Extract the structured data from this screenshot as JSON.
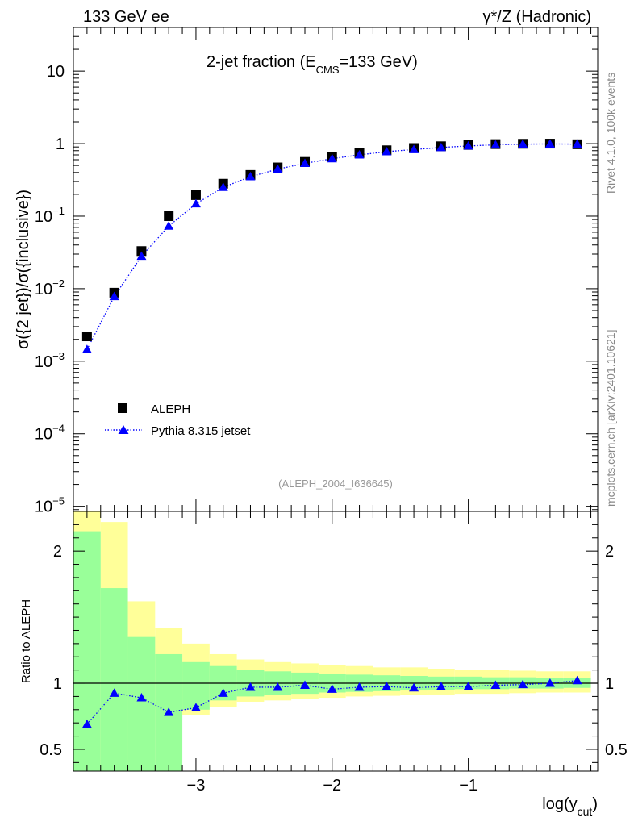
{
  "header": {
    "left": "133 GeV ee",
    "right": "γ*/Z (Hadronic)"
  },
  "side_labels": {
    "rivet": "Rivet 4.1.0,  100k events",
    "mcplots": "mcplots.cern.ch [arXiv:2401.10621]"
  },
  "title": {
    "main": "2-jet fraction (E",
    "sub": "CMS",
    "tail": "=133 GeV)"
  },
  "analysis_id": "(ALEPH_2004_I636645)",
  "colors": {
    "data": "#000000",
    "mc": "#0000ff",
    "band_inner": "#99ff99",
    "band_outer": "#ffff99"
  },
  "chart_data": [
    {
      "type": "scatter",
      "panel": "main",
      "yscale": "log",
      "ylabel": "σ({2 jet})/σ({inclusive})",
      "xlim": [
        -3.9,
        -0.05
      ],
      "ylim": [
        8.5e-06,
        40
      ],
      "y_ticks": [
        {
          "value": 10,
          "base": "10",
          "exp": ""
        },
        {
          "value": 1,
          "base": "1",
          "exp": ""
        },
        {
          "value": 0.1,
          "base": "10",
          "exp": "−1"
        },
        {
          "value": 0.01,
          "base": "10",
          "exp": "−2"
        },
        {
          "value": 0.001,
          "base": "10",
          "exp": "−3"
        },
        {
          "value": 0.0001,
          "base": "10",
          "exp": "−4"
        },
        {
          "value": 1e-05,
          "base": "10",
          "exp": "−5"
        }
      ],
      "legend": [
        {
          "label": "ALEPH",
          "marker": "square"
        },
        {
          "label": "Pythia 8.315 jetset",
          "marker": "triangle"
        }
      ],
      "x": [
        -3.8,
        -3.6,
        -3.4,
        -3.2,
        -3.0,
        -2.8,
        -2.6,
        -2.4,
        -2.2,
        -2.0,
        -1.8,
        -1.6,
        -1.4,
        -1.2,
        -1.0,
        -0.8,
        -0.6,
        -0.4,
        -0.2
      ],
      "series": [
        {
          "name": "ALEPH",
          "values": [
            0.0022,
            0.0088,
            0.033,
            0.1,
            0.195,
            0.28,
            0.37,
            0.47,
            0.56,
            0.66,
            0.74,
            0.81,
            0.87,
            0.92,
            0.96,
            0.985,
            0.995,
            1.0,
            0.98
          ]
        },
        {
          "name": "Pythia 8.315 jetset",
          "values": [
            0.00145,
            0.0078,
            0.028,
            0.073,
            0.148,
            0.25,
            0.35,
            0.445,
            0.535,
            0.62,
            0.7,
            0.775,
            0.83,
            0.885,
            0.93,
            0.962,
            0.985,
            0.99,
            0.985
          ]
        }
      ]
    },
    {
      "type": "line",
      "panel": "ratio",
      "ylabel": "Ratio to ALEPH",
      "xlabel": "log(y",
      "xlabel_sub": "cut",
      "xlabel_tail": ")",
      "xlim": [
        -3.9,
        -0.05
      ],
      "ylim": [
        0.335,
        2.3
      ],
      "y_ticks": [
        {
          "value": 2,
          "label": "2"
        },
        {
          "value": 1,
          "label": "1"
        },
        {
          "value": 0.5,
          "label": "0.5"
        }
      ],
      "x_ticks": [
        {
          "value": -3,
          "label": "−3"
        },
        {
          "value": -2,
          "label": "−2"
        },
        {
          "value": -1,
          "label": "−1"
        }
      ],
      "bin_edges": [
        -3.9,
        -3.7,
        -3.5,
        -3.3,
        -3.1,
        -2.9,
        -2.7,
        -2.5,
        -2.3,
        -2.1,
        -1.9,
        -1.7,
        -1.5,
        -1.3,
        -1.1,
        -0.9,
        -0.7,
        -0.5,
        -0.3,
        -0.1
      ],
      "band_inner": [
        [
          0.335,
          2.15
        ],
        [
          0.335,
          1.72
        ],
        [
          0.335,
          1.35
        ],
        [
          0.335,
          1.22
        ],
        [
          0.8,
          1.16
        ],
        [
          0.87,
          1.13
        ],
        [
          0.9,
          1.1
        ],
        [
          0.91,
          1.09
        ],
        [
          0.92,
          1.08
        ],
        [
          0.93,
          1.07
        ],
        [
          0.935,
          1.065
        ],
        [
          0.94,
          1.06
        ],
        [
          0.945,
          1.055
        ],
        [
          0.95,
          1.05
        ],
        [
          0.955,
          1.05
        ],
        [
          0.955,
          1.045
        ],
        [
          0.96,
          1.045
        ],
        [
          0.96,
          1.04
        ],
        [
          0.965,
          1.04
        ]
      ],
      "band_outer": [
        [
          0.335,
          2.3
        ],
        [
          0.335,
          2.22
        ],
        [
          0.4,
          1.62
        ],
        [
          0.72,
          1.42
        ],
        [
          0.76,
          1.3
        ],
        [
          0.82,
          1.22
        ],
        [
          0.86,
          1.18
        ],
        [
          0.87,
          1.16
        ],
        [
          0.88,
          1.15
        ],
        [
          0.89,
          1.14
        ],
        [
          0.9,
          1.13
        ],
        [
          0.905,
          1.12
        ],
        [
          0.91,
          1.12
        ],
        [
          0.915,
          1.11
        ],
        [
          0.92,
          1.1
        ],
        [
          0.92,
          1.1
        ],
        [
          0.925,
          1.095
        ],
        [
          0.93,
          1.09
        ],
        [
          0.93,
          1.09
        ]
      ],
      "x": [
        -3.8,
        -3.6,
        -3.4,
        -3.2,
        -3.0,
        -2.8,
        -2.6,
        -2.4,
        -2.2,
        -2.0,
        -1.8,
        -1.6,
        -1.4,
        -1.2,
        -1.0,
        -0.8,
        -0.6,
        -0.4,
        -0.2
      ],
      "values": [
        0.69,
        0.925,
        0.89,
        0.78,
        0.815,
        0.925,
        0.97,
        0.97,
        0.985,
        0.955,
        0.97,
        0.975,
        0.965,
        0.975,
        0.975,
        0.985,
        0.99,
        1.0,
        1.02
      ]
    }
  ]
}
